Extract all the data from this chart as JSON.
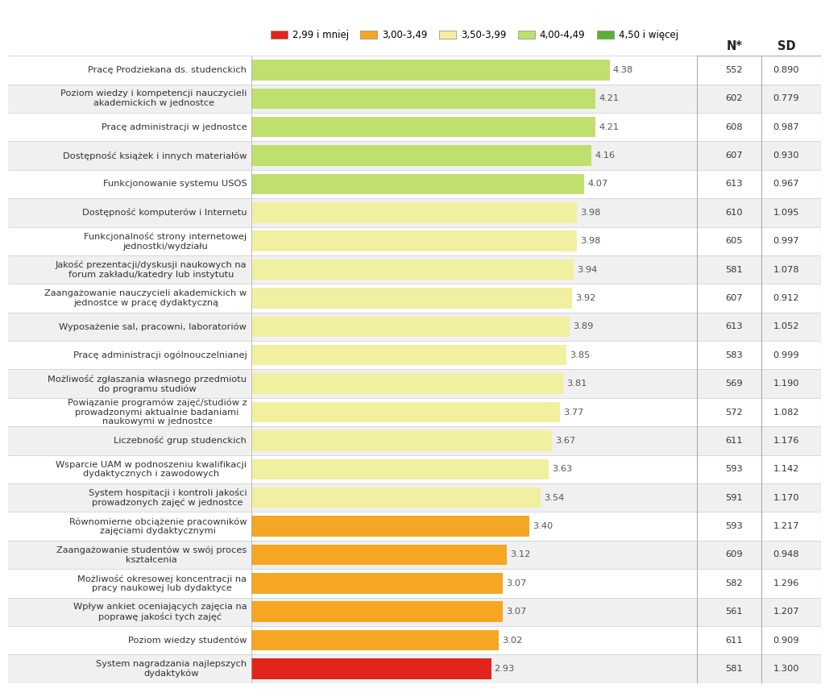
{
  "categories": [
    "Pracę Prodziekana ds. studenckich",
    "Poziom wiedzy i kompetencji nauczycieli\nakademickich w jednostce",
    "Pracę administracji w jednostce",
    "Dostępność książek i innych materiałów",
    "Funkcjonowanie systemu USOS",
    "Dostępność komputerów i Internetu",
    "Funkcjonalność strony internetowej\njednostki/wydziału",
    "Jakość prezentacji/dyskusji naukowych na\nforum zakładu/katedry lub instytutu",
    "Zaangażowanie nauczycieli akademickich w\njednostce w pracę dydaktyczną",
    "Wyposażenie sal, pracowni, laboratoriów",
    "Pracę administracji ogólnouczelnianej",
    "Możliwość zgłaszania własnego przedmiotu\ndo programu studiów",
    "Powiązanie programów zajęć/studiów z\nprowadzonymi aktualnie badaniami\nnaukowymi w jednostce",
    "Liczebność grup studenckich",
    "Wsparcie UAM w podnoszeniu kwalifikacji\ndydaktycznych i zawodowych",
    "System hospitacji i kontroli jakości\nprowadzonych zajęć w jednostce",
    "Równomierne obciążenie pracowników\nzajęciami dydaktycznymi",
    "Zaangażowanie studentów w swój proces\nkształcenia",
    "Możliwość okresowej koncentracji na\npracy naukowej lub dydaktyce",
    "Wpływ ankiet oceniających zajęcia na\npoprawę jakości tych zajęć",
    "Poziom wiedzy studentów",
    "System nagradzania najlepszych\ndydaktyków"
  ],
  "values": [
    4.38,
    4.21,
    4.21,
    4.16,
    4.07,
    3.98,
    3.98,
    3.94,
    3.92,
    3.89,
    3.85,
    3.81,
    3.77,
    3.67,
    3.63,
    3.54,
    3.4,
    3.12,
    3.07,
    3.07,
    3.02,
    2.93
  ],
  "n_values": [
    552,
    602,
    608,
    607,
    613,
    610,
    605,
    581,
    607,
    613,
    583,
    569,
    572,
    611,
    593,
    591,
    593,
    609,
    582,
    561,
    611,
    581
  ],
  "sd_values": [
    0.89,
    0.779,
    0.987,
    0.93,
    0.967,
    1.095,
    0.997,
    1.078,
    0.912,
    1.052,
    0.999,
    1.19,
    1.082,
    1.176,
    1.142,
    1.17,
    1.217,
    0.948,
    1.296,
    1.207,
    0.909,
    1.3
  ],
  "colors": {
    "below_300": "#e0251a",
    "300_349": "#f5a623",
    "350_399": "#f0f0a0",
    "400_449": "#bfe06e",
    "above_450": "#5ab035"
  },
  "legend_labels": [
    "2,99 i mniej",
    "3,00-3,49",
    "3,50-3,99",
    "4,00-4,49",
    "4,50 i więcej"
  ],
  "legend_colors": [
    "#e0251a",
    "#f5a623",
    "#f0f0a0",
    "#bfe06e",
    "#5ab035"
  ],
  "row_bg_odd": "#ffffff",
  "row_bg_even": "#f0f0f0",
  "sep_color": "#cccccc",
  "table_line_color": "#aaaaaa",
  "value_label_color": "#555555",
  "label_fontsize": 8.2,
  "value_fontsize": 8.2,
  "header_fontsize": 10.5,
  "x_max_display": 5.0
}
